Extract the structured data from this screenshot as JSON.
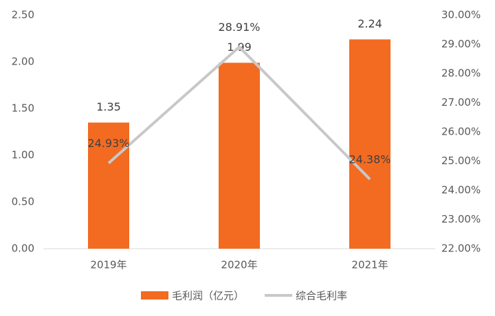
{
  "chart_data": {
    "type": "bar",
    "categories": [
      "2019年",
      "2020年",
      "2021年"
    ],
    "series": [
      {
        "name": "毛利润（亿元）",
        "type": "bar",
        "color": "#f26b21",
        "values": [
          1.35,
          1.99,
          2.24
        ]
      },
      {
        "name": "综合毛利率",
        "type": "line",
        "axis": "y2",
        "color": "#c8c8c8",
        "values": [
          24.93,
          28.91,
          24.38
        ],
        "value_labels": [
          "24.93%",
          "28.91%",
          "24.38%"
        ]
      }
    ],
    "ylim": [
      0,
      2.5
    ],
    "yticks": [
      {
        "value": 0,
        "label": "0.00"
      },
      {
        "value": 0.5,
        "label": "0.50"
      },
      {
        "value": 1,
        "label": "1.00"
      },
      {
        "value": 1.5,
        "label": "1.50"
      },
      {
        "value": 2,
        "label": "2.00"
      },
      {
        "value": 2.5,
        "label": "2.50"
      }
    ],
    "y2lim": [
      22,
      30
    ],
    "y2ticks": [
      {
        "value": 22,
        "label": "22.00%"
      },
      {
        "value": 23,
        "label": "23.00%"
      },
      {
        "value": 24,
        "label": "24.00%"
      },
      {
        "value": 25,
        "label": "25.00%"
      },
      {
        "value": 26,
        "label": "26.00%"
      },
      {
        "value": 27,
        "label": "27.00%"
      },
      {
        "value": 28,
        "label": "28.00%"
      },
      {
        "value": 29,
        "label": "29.00%"
      },
      {
        "value": 30,
        "label": "30.00%"
      }
    ],
    "grid": false,
    "legend": "bottom"
  }
}
